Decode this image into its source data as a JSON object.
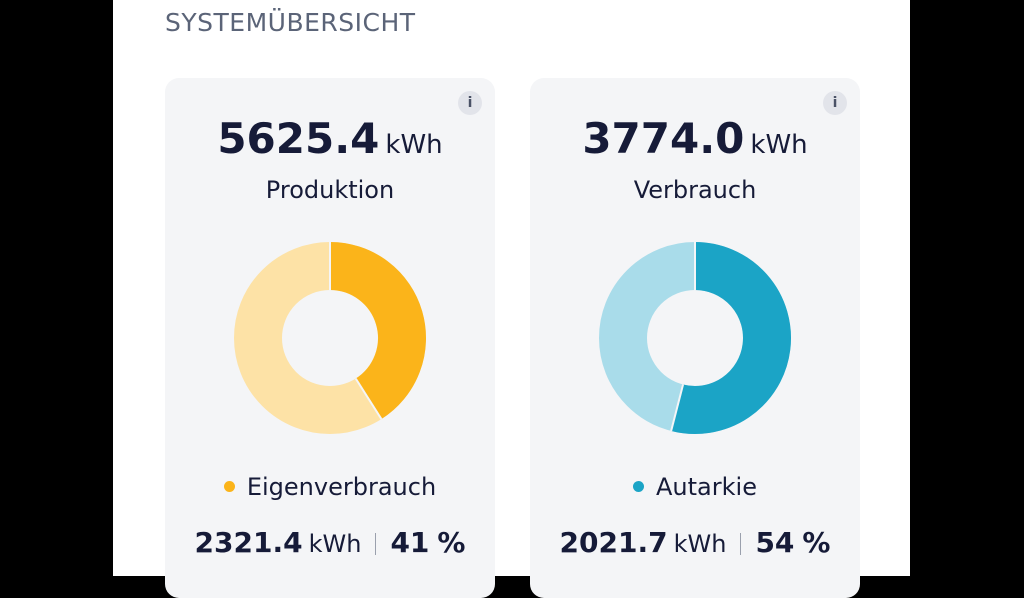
{
  "header": {
    "title": "SYSTEMÜBERSICHT"
  },
  "cards": [
    {
      "info_icon": "i",
      "total": "5625.4",
      "total_unit": "kWh",
      "label": "Produktion",
      "legend": "Eigenverbrauch",
      "amount": "2321.4",
      "amount_unit": "kWh",
      "percent": 41,
      "percent_unit": "%",
      "color": "#fbb41a",
      "track_color": "#fde2a6"
    },
    {
      "info_icon": "i",
      "total": "3774.0",
      "total_unit": "kWh",
      "label": "Verbrauch",
      "legend": "Autarkie",
      "amount": "2021.7",
      "amount_unit": "kWh",
      "percent": 54,
      "percent_unit": "%",
      "color": "#1ba4c6",
      "track_color": "#a9dcea"
    }
  ]
}
